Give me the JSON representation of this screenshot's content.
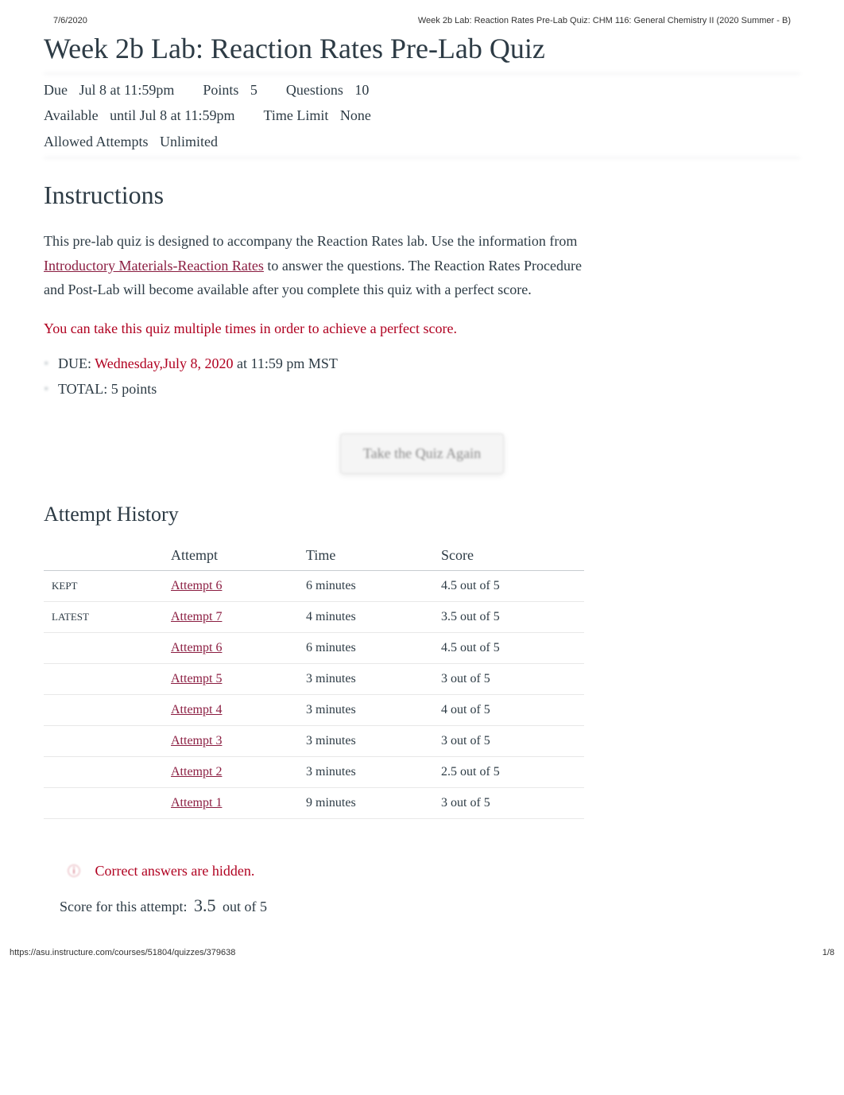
{
  "print_header": {
    "date": "7/6/2020",
    "doc_title": "Week 2b Lab: Reaction Rates Pre-Lab Quiz: CHM 116: General Chemistry II (2020 Summer - B)"
  },
  "title": "Week 2b Lab: Reaction Rates Pre-Lab Quiz",
  "meta": {
    "due_label": "Due",
    "due_value": "Jul 8 at 11:59pm",
    "points_label": "Points",
    "points_value": "5",
    "questions_label": "Questions",
    "questions_value": "10",
    "available_label": "Available",
    "available_value": "until Jul 8 at 11:59pm",
    "timelimit_label": "Time Limit",
    "timelimit_value": "None",
    "allowed_label": "Allowed Attempts",
    "allowed_value": "Unlimited"
  },
  "instructions_heading": "Instructions",
  "intro": {
    "part1": "This pre-lab quiz is designed to accompany the ",
    "bold1": "Reaction Rates",
    "part2": " lab. Use the information from ",
    "link_text": "Introductory Materials-Reaction Rates",
    "part3": " to answer the questions. The ",
    "bold2": "Reaction Rates",
    "part4": " Procedure and Post-Lab will become available after you complete this quiz with a perfect score."
  },
  "red_note": "You can take this quiz multiple times in order to achieve a perfect score.",
  "bullets": {
    "due_label": "DUE: ",
    "due_date": "Wednesday,July 8, 2020",
    "due_time": " at 11:59 pm MST",
    "total_label": "TOTAL: ",
    "total_value": "5 points"
  },
  "take_again_label": "Take the Quiz Again",
  "history_heading": "Attempt History",
  "history": {
    "columns": [
      "",
      "Attempt",
      "Time",
      "Score"
    ],
    "rows": [
      {
        "tag": "KEPT",
        "attempt": "Attempt 6",
        "time": "6 minutes",
        "score": "4.5 out of 5"
      },
      {
        "tag": "LATEST",
        "attempt": "Attempt 7",
        "time": "4 minutes",
        "score": "3.5 out of 5"
      },
      {
        "tag": "",
        "attempt": "Attempt 6",
        "time": "6 minutes",
        "score": "4.5 out of 5"
      },
      {
        "tag": "",
        "attempt": "Attempt 5",
        "time": "3 minutes",
        "score": "3 out of 5"
      },
      {
        "tag": "",
        "attempt": "Attempt 4",
        "time": "3 minutes",
        "score": "4 out of 5"
      },
      {
        "tag": "",
        "attempt": "Attempt 3",
        "time": "3 minutes",
        "score": "3 out of 5"
      },
      {
        "tag": "",
        "attempt": "Attempt 2",
        "time": "3 minutes",
        "score": "2.5 out of 5"
      },
      {
        "tag": "",
        "attempt": "Attempt 1",
        "time": "9 minutes",
        "score": "3 out of 5"
      }
    ]
  },
  "correct_hidden": "Correct answers are hidden.",
  "score_line": {
    "prefix": "Score for this attempt: ",
    "score": "3.5",
    "suffix": " out of 5"
  },
  "print_footer": {
    "url": "https://asu.instructure.com/courses/51804/quizzes/379638",
    "page": "1/8"
  },
  "colors": {
    "text": "#2d3b45",
    "link": "#8b1d41",
    "red": "#b00020",
    "border": "#c7cdd1",
    "row_border": "#e8e8e8"
  }
}
